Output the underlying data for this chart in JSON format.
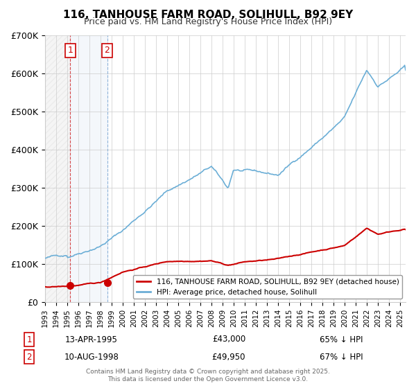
{
  "title": "116, TANHOUSE FARM ROAD, SOLIHULL, B92 9EY",
  "subtitle": "Price paid vs. HM Land Registry's House Price Index (HPI)",
  "xlabel": "",
  "ylabel": "",
  "ylim": [
    0,
    700000
  ],
  "yticks": [
    0,
    100000,
    200000,
    300000,
    400000,
    500000,
    600000,
    700000
  ],
  "ytick_labels": [
    "£0",
    "£100K",
    "£200K",
    "£300K",
    "£400K",
    "£500K",
    "£600K",
    "£700K"
  ],
  "hpi_color": "#6baed6",
  "price_color": "#cc0000",
  "background_color": "#ffffff",
  "plot_bg_color": "#ffffff",
  "grid_color": "#cccccc",
  "hatch_color": "#cccccc",
  "sale1_date": 1995.28,
  "sale1_price": 43000,
  "sale1_label": "13-APR-1995",
  "sale1_amount": "£43,000",
  "sale1_hpi": "65% ↓ HPI",
  "sale2_date": 1998.61,
  "sale2_price": 49950,
  "sale2_label": "10-AUG-1998",
  "sale2_amount": "£49,950",
  "sale2_hpi": "67% ↓ HPI",
  "legend_red_label": "116, TANHOUSE FARM ROAD, SOLIHULL, B92 9EY (detached house)",
  "legend_blue_label": "HPI: Average price, detached house, Solihull",
  "footer_text": "Contains HM Land Registry data © Crown copyright and database right 2025.\nThis data is licensed under the Open Government Licence v3.0.",
  "xstart": 1993,
  "xend": 2025.5
}
